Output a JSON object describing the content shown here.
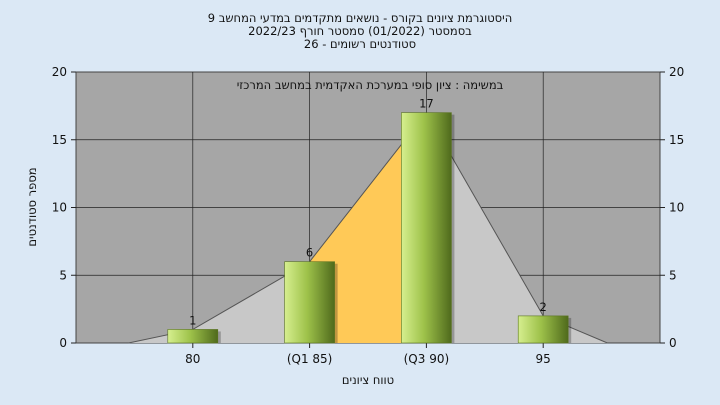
{
  "header": {
    "title_line1": "היסטוגרמת ציונים בקורס - נושאים מתקדמים במדעי המחשב 9",
    "title_line2": "בסמסטר  (01/2022)  סמסטר חורף  2022/23",
    "title_line3": "סטודנטים רשומים - 26"
  },
  "colors": {
    "background": "#dbe8f5",
    "plot_area": "#a6a6a6",
    "bar_light": "#d6ef8f",
    "bar_dark": "#4f6a1c",
    "quartile_fill": "#ffc957",
    "area_fill": "#c8c8c8"
  },
  "chart_data": {
    "type": "bar",
    "note": "במשימה : ציון סופי במערכת האקדמית במחשב המרכזי",
    "xlabel": "טווח ציונים",
    "ylabel": "מספר סטודנטים",
    "ylim": [
      0,
      20
    ],
    "yticks": [
      0,
      5,
      10,
      15,
      20
    ],
    "grid": true,
    "categories": [
      "80",
      "(Q1 85)",
      "(Q3 90)",
      "95"
    ],
    "values": [
      1,
      6,
      17,
      2
    ],
    "data_labels": [
      "1",
      "6",
      "17",
      "2"
    ],
    "quartile_range": [
      "(Q1 85)",
      "(Q3 90)"
    ]
  }
}
